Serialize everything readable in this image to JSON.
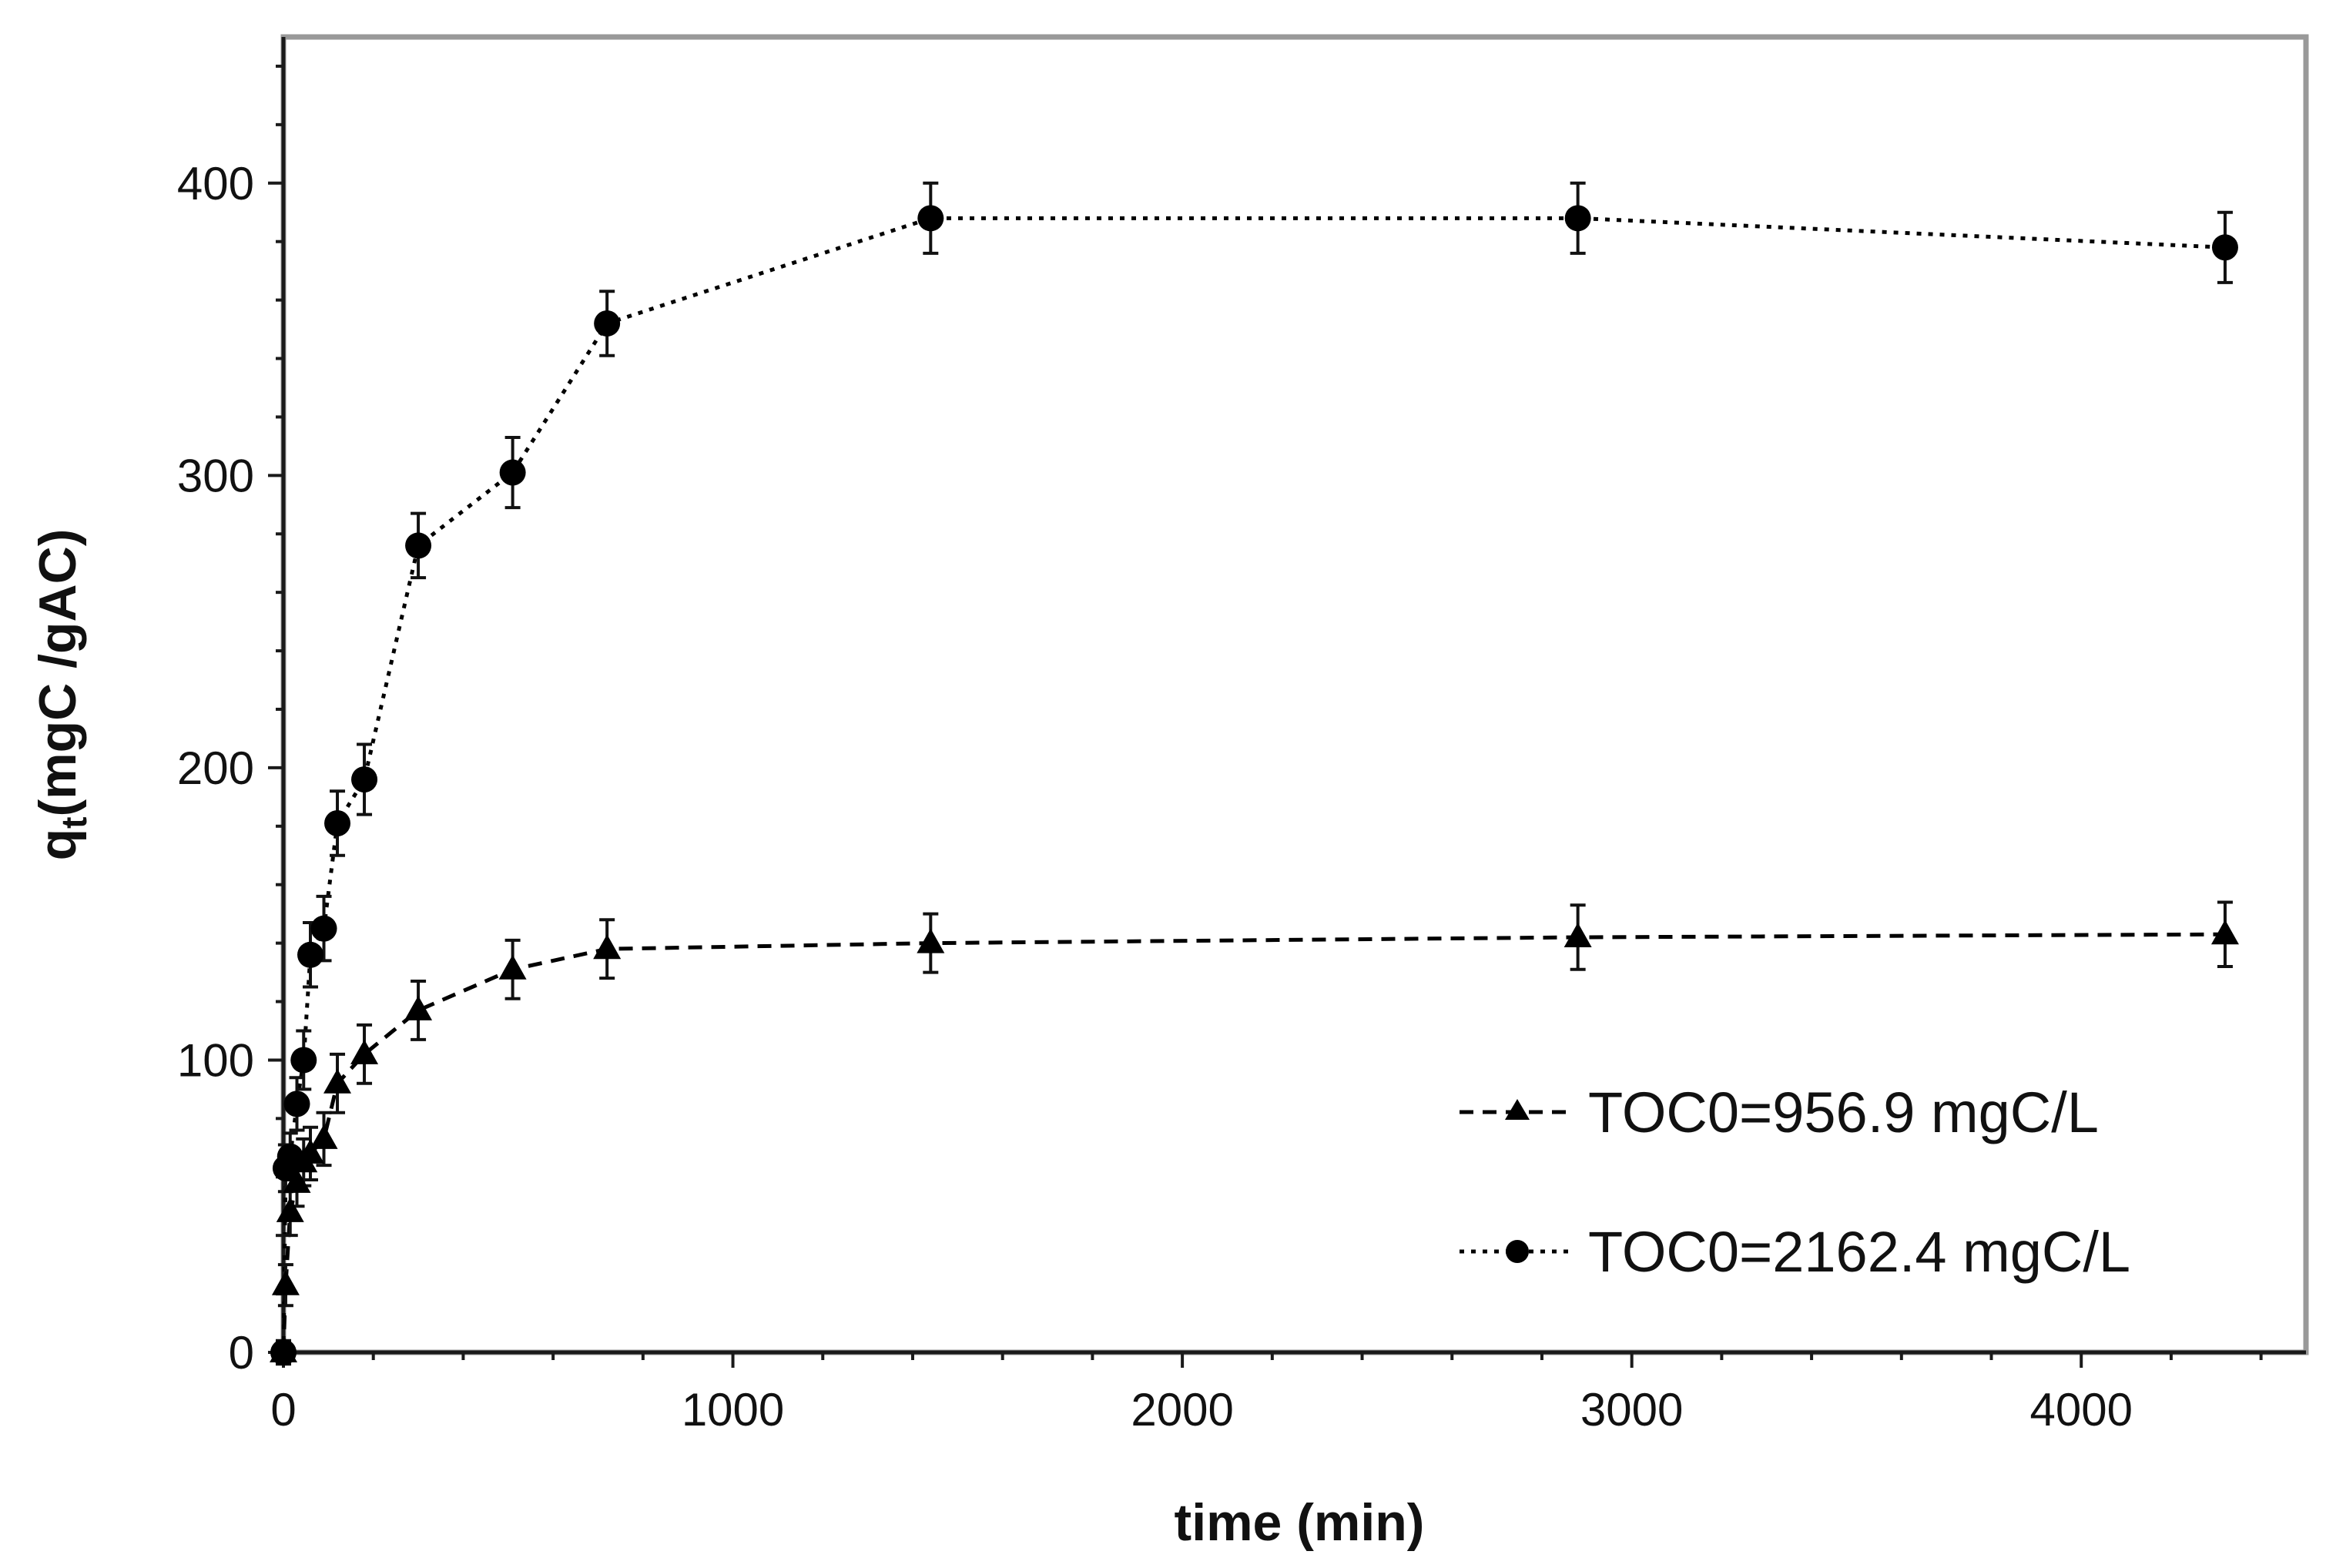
{
  "chart_data": {
    "type": "scatter",
    "title": "",
    "xlabel": "time (min)",
    "ylabel": {
      "base": "q",
      "subscript": "t",
      "rest": "(mgC /gAC)"
    },
    "xlim": [
      0,
      4500
    ],
    "ylim": [
      0,
      450
    ],
    "xticks": [
      0,
      1000,
      2000,
      3000,
      4000
    ],
    "xtick_labels": [
      "0",
      "1000",
      "2000",
      "3000",
      "4000"
    ],
    "yticks": [
      0,
      100,
      200,
      300,
      400
    ],
    "ytick_labels": [
      "0",
      "100",
      "200",
      "300",
      "400"
    ],
    "grid": false,
    "legend_position": "bottom-right",
    "series": [
      {
        "name": "TOC0=956.9 mgC/L",
        "marker": "triangle",
        "line": "dashed",
        "x": [
          0,
          5,
          15,
          30,
          45,
          60,
          90,
          120,
          180,
          300,
          510,
          720,
          1440,
          2880,
          4320
        ],
        "y": [
          0,
          23,
          48,
          58,
          65,
          68,
          73,
          92,
          102,
          117,
          131,
          138,
          140,
          142,
          143
        ],
        "error": [
          4,
          7,
          8,
          8,
          8,
          9,
          9,
          10,
          10,
          10,
          10,
          10,
          10,
          11,
          11
        ]
      },
      {
        "name": "TOC0=2162.4 mgC/L",
        "marker": "circle",
        "line": "dotted",
        "x": [
          0,
          5,
          15,
          30,
          45,
          60,
          90,
          120,
          180,
          300,
          510,
          720,
          1440,
          2880,
          4320
        ],
        "y": [
          0,
          63,
          67,
          85,
          100,
          136,
          145,
          181,
          196,
          276,
          301,
          352,
          388,
          388,
          378
        ],
        "error": [
          4,
          8,
          8,
          9,
          10,
          11,
          11,
          11,
          12,
          11,
          12,
          11,
          12,
          12,
          12
        ]
      }
    ]
  },
  "colors": {
    "data": "#000000",
    "frame": "#999999",
    "axis": "#1a1a1a"
  }
}
